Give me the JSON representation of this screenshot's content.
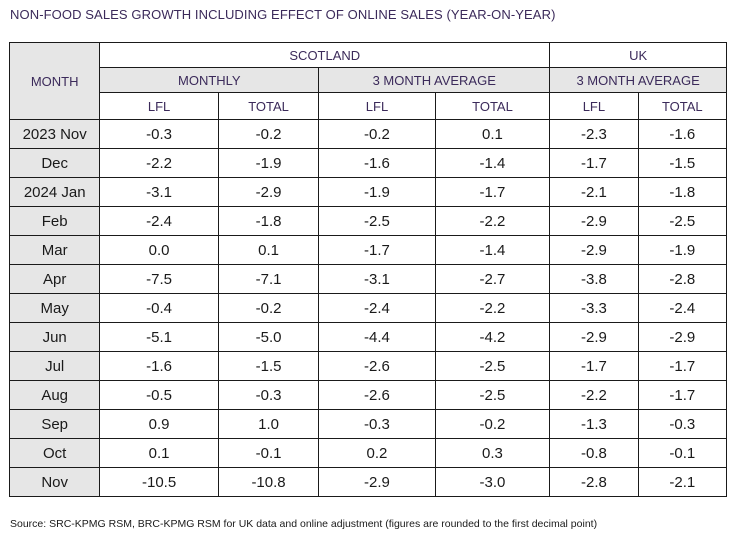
{
  "title": "NON-FOOD SALES GROWTH INCLUDING EFFECT OF ONLINE SALES (YEAR-ON-YEAR)",
  "headers": {
    "month": "MONTH",
    "scotland": "SCOTLAND",
    "uk": "UK",
    "monthly": "MONTHLY",
    "three_month_avg_scotland": "3 MONTH AVERAGE",
    "three_month_avg_uk": "3 MONTH AVERAGE",
    "lfl": "LFL",
    "total": "TOTAL"
  },
  "rows": [
    {
      "month": "2023 Nov",
      "cells": [
        "-0.3",
        "-0.2",
        "-0.2",
        "0.1",
        "-2.3",
        "-1.6"
      ]
    },
    {
      "month": "Dec",
      "cells": [
        "-2.2",
        "-1.9",
        "-1.6",
        "-1.4",
        "-1.7",
        "-1.5"
      ]
    },
    {
      "month": "2024 Jan",
      "cells": [
        "-3.1",
        "-2.9",
        "-1.9",
        "-1.7",
        "-2.1",
        "-1.8"
      ]
    },
    {
      "month": "Feb",
      "cells": [
        "-2.4",
        "-1.8",
        "-2.5",
        "-2.2",
        "-2.9",
        "-2.5"
      ]
    },
    {
      "month": "Mar",
      "cells": [
        "0.0",
        "0.1",
        "-1.7",
        "-1.4",
        "-2.9",
        "-1.9"
      ]
    },
    {
      "month": "Apr",
      "cells": [
        "-7.5",
        "-7.1",
        "-3.1",
        "-2.7",
        "-3.8",
        "-2.8"
      ]
    },
    {
      "month": "May",
      "cells": [
        "-0.4",
        "-0.2",
        "-2.4",
        "-2.2",
        "-3.3",
        "-2.4"
      ]
    },
    {
      "month": "Jun",
      "cells": [
        "-5.1",
        "-5.0",
        "-4.4",
        "-4.2",
        "-2.9",
        "-2.9"
      ]
    },
    {
      "month": "Jul",
      "cells": [
        "-1.6",
        "-1.5",
        "-2.6",
        "-2.5",
        "-1.7",
        "-1.7"
      ]
    },
    {
      "month": "Aug",
      "cells": [
        "-0.5",
        "-0.3",
        "-2.6",
        "-2.5",
        "-2.2",
        "-1.7"
      ]
    },
    {
      "month": "Sep",
      "cells": [
        "0.9",
        "1.0",
        "-0.3",
        "-0.2",
        "-1.3",
        "-0.3"
      ]
    },
    {
      "month": "Oct",
      "cells": [
        "0.1",
        "-0.1",
        "0.2",
        "0.3",
        "-0.8",
        "-0.1"
      ]
    },
    {
      "month": "Nov",
      "cells": [
        "-10.5",
        "-10.8",
        "-2.9",
        "-3.0",
        "-2.8",
        "-2.1"
      ]
    }
  ],
  "source": "Source: SRC-KPMG RSM, BRC-KPMG RSM for UK data and online adjustment (figures are rounded to the first decimal point)"
}
